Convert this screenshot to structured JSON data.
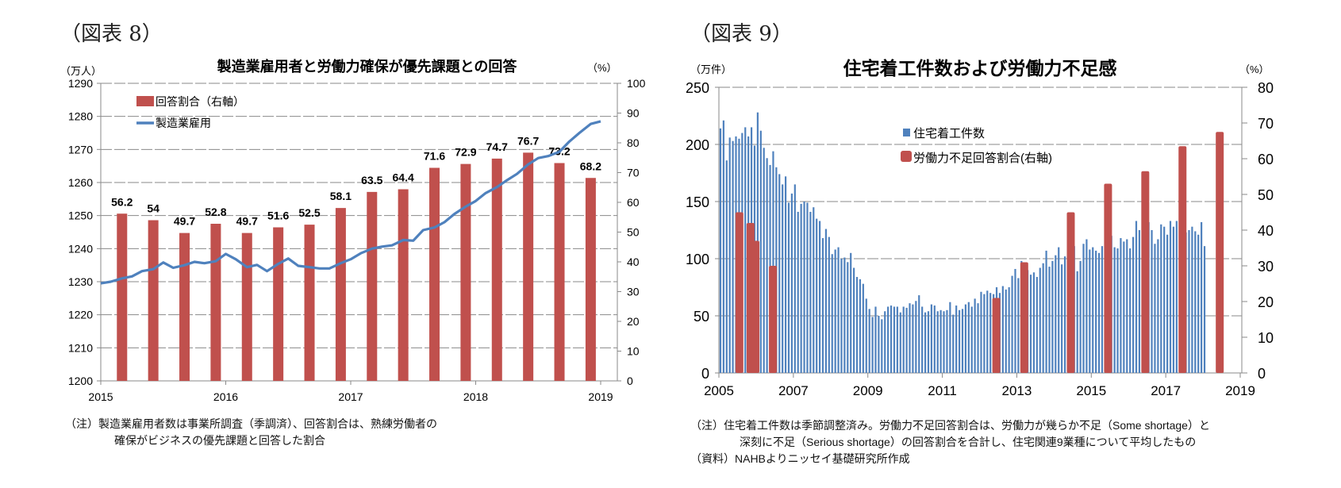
{
  "figures": [
    {
      "label": "（図表 8）"
    },
    {
      "label": "（図表 9）"
    }
  ],
  "chart_data": [
    {
      "type": "bar",
      "title": "製造業雇用者と労働力確保が優先課題との回答",
      "left_unit": "（万人）",
      "right_unit": "（%）",
      "xlabel": "",
      "left_ylim": [
        1200,
        1290
      ],
      "left_ticks": [
        1200,
        1210,
        1220,
        1230,
        1240,
        1250,
        1260,
        1270,
        1280,
        1290
      ],
      "right_ylim": [
        0,
        100
      ],
      "right_ticks": [
        0,
        10,
        20,
        30,
        40,
        50,
        60,
        70,
        80,
        90,
        100
      ],
      "x_range": [
        2015.0,
        2019.0
      ],
      "x_ticks": [
        "2015",
        "2016",
        "2017",
        "2018",
        "2019"
      ],
      "grid": true,
      "legend_position": "top-left",
      "series": [
        {
          "name": "回答割合（右軸）",
          "kind": "bar",
          "axis": "right",
          "color": "#c0504d",
          "x": [
            2015.17,
            2015.42,
            2015.67,
            2015.92,
            2016.17,
            2016.42,
            2016.67,
            2016.92,
            2017.17,
            2017.42,
            2017.67,
            2017.92,
            2018.17,
            2018.42,
            2018.67,
            2018.92
          ],
          "values": [
            56.2,
            54,
            49.7,
            52.8,
            49.7,
            51.6,
            52.5,
            58.1,
            63.5,
            64.4,
            71.6,
            72.9,
            74.7,
            76.7,
            73.2,
            68.2
          ],
          "labels": [
            "56.2",
            "54",
            "49.7",
            "52.8",
            "49.7",
            "51.6",
            "52.5",
            "58.1",
            "63.5",
            "64.4",
            "71.6",
            "72.9",
            "74.7",
            "76.7",
            "73.2",
            "68.2"
          ]
        },
        {
          "name": "製造業雇用",
          "kind": "line",
          "axis": "left",
          "color": "#4f81bd",
          "x": [
            2015.0,
            2015.08,
            2015.17,
            2015.25,
            2015.33,
            2015.42,
            2015.5,
            2015.58,
            2015.67,
            2015.75,
            2015.83,
            2015.92,
            2016.0,
            2016.08,
            2016.17,
            2016.25,
            2016.33,
            2016.42,
            2016.5,
            2016.58,
            2016.67,
            2016.75,
            2016.83,
            2016.92,
            2017.0,
            2017.08,
            2017.17,
            2017.25,
            2017.33,
            2017.42,
            2017.5,
            2017.58,
            2017.67,
            2017.75,
            2017.83,
            2017.92,
            2018.0,
            2018.08,
            2018.17,
            2018.25,
            2018.33,
            2018.42,
            2018.5,
            2018.58,
            2018.67,
            2018.75,
            2018.83,
            2018.92,
            2019.0
          ],
          "values": [
            1229.5,
            1230,
            1231,
            1231.6,
            1233.2,
            1233.8,
            1235.8,
            1234.2,
            1235,
            1236,
            1235.6,
            1236.2,
            1238.4,
            1236.8,
            1234.4,
            1235.1,
            1233.2,
            1235.4,
            1237,
            1234.8,
            1234.4,
            1234,
            1234,
            1235.6,
            1236.8,
            1238.6,
            1240,
            1240.6,
            1241,
            1242.6,
            1242.4,
            1245.6,
            1246.4,
            1248,
            1250.5,
            1252.7,
            1254.4,
            1256.8,
            1258.6,
            1260.7,
            1262.6,
            1265.5,
            1267.4,
            1268,
            1269.3,
            1272.4,
            1275,
            1277.7,
            1278.5
          ]
        }
      ],
      "notes": [
        "（注）製造業雇用者数は事業所調査（季調済）、回答割合は、熟練労働者の",
        "確保がビジネスの優先課題と回答した割合"
      ]
    },
    {
      "type": "bar",
      "title": "住宅着工件数および労働力不足感",
      "left_unit": "（万件）",
      "right_unit": "（%）",
      "xlabel": "",
      "left_ylim": [
        0,
        250
      ],
      "left_ticks": [
        0,
        50,
        100,
        150,
        200,
        250
      ],
      "right_ylim": [
        0,
        80
      ],
      "right_ticks": [
        0,
        10,
        20,
        30,
        40,
        50,
        60,
        70,
        80
      ],
      "x_range": [
        2005.0,
        2019.0
      ],
      "x_ticks": [
        "2005",
        "2007",
        "2009",
        "2011",
        "2013",
        "2015",
        "2017",
        "2019"
      ],
      "grid": true,
      "legend_position": "top-center",
      "series": [
        {
          "name": "住宅着工件数",
          "kind": "bar",
          "axis": "left",
          "color": "#4f81bd",
          "start": "2005-01",
          "frequency": "monthly",
          "values": [
            214,
            221,
            186,
            206,
            203,
            207,
            205,
            210,
            215,
            207,
            215,
            199,
            228,
            212,
            197,
            188,
            182,
            194,
            180,
            174,
            165,
            172,
            149,
            157,
            165,
            141,
            148,
            150,
            149,
            141,
            145,
            135,
            133,
            118,
            126,
            119,
            104,
            108,
            110,
            100,
            101,
            97,
            105,
            92,
            84,
            82,
            78,
            65,
            56,
            49,
            58,
            50,
            47,
            54,
            58,
            59,
            58,
            58,
            53,
            58,
            57,
            61,
            60,
            63,
            68,
            58,
            53,
            54,
            60,
            59,
            54,
            55,
            54,
            55,
            62,
            51,
            59,
            55,
            56,
            60,
            62,
            58,
            65,
            61,
            71,
            69,
            72,
            70,
            69,
            75,
            70,
            76,
            73,
            75,
            85,
            91,
            83,
            98,
            89,
            90,
            86,
            88,
            84,
            92,
            96,
            107,
            93,
            98,
            103,
            110,
            95,
            102,
            102,
            108,
            111,
            89,
            98,
            113,
            117,
            108,
            110,
            107,
            105,
            111,
            122,
            115,
            120,
            110,
            109,
            118,
            115,
            117,
            109,
            119,
            133,
            125,
            120,
            116,
            132,
            125,
            113,
            117,
            130,
            128,
            121,
            133,
            128,
            133,
            125,
            128,
            123,
            125,
            128,
            124,
            121,
            132,
            111
          ],
          "note": "end portion approximated from pixels"
        },
        {
          "name": "労働力不足回答割合(右軸)",
          "kind": "bar",
          "axis": "right",
          "color": "#c0504d",
          "x": [
            2005.55,
            2005.85,
            2005.98,
            2006.45,
            2012.45,
            2013.2,
            2014.45,
            2015.45,
            2016.45,
            2017.45,
            2018.45
          ],
          "values": [
            45,
            42,
            37,
            30,
            21,
            31,
            45,
            53,
            56.5,
            63.5,
            67.5
          ]
        }
      ],
      "notes": [
        "（注）住宅着工件数は季節調整済み。労働力不足回答割合は、労働力が幾らか不足（Some shortage）と",
        "深刻に不足（Serious shortage）の回答割合を合計し、住宅関連9業種について平均したもの",
        "（資料）NAHBよりニッセイ基礎研究所作成"
      ]
    }
  ]
}
